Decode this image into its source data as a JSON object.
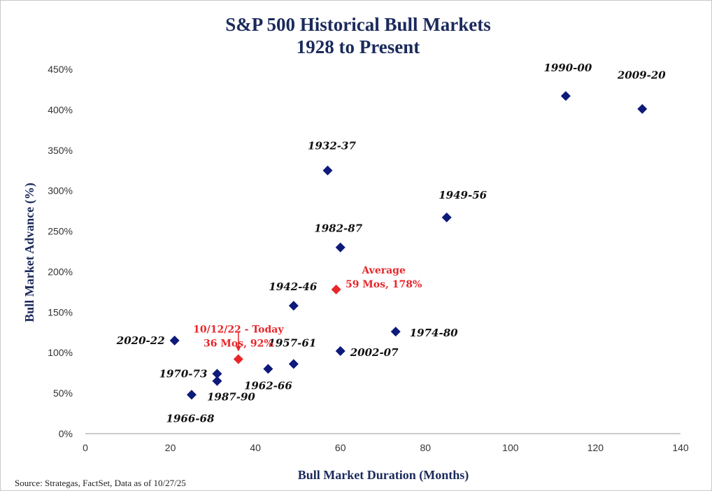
{
  "chart_data": {
    "type": "scatter",
    "title": "S&P 500 Historical Bull Markets",
    "subtitle": "1928 to Present",
    "xlabel": "Bull Market Duration (Months)",
    "ylabel": "Bull Market Advance (%)",
    "xlim": [
      0,
      140
    ],
    "ylim": [
      0,
      450
    ],
    "xticks": [
      0,
      20,
      40,
      60,
      80,
      100,
      120,
      140
    ],
    "yticks": [
      0,
      50,
      100,
      150,
      200,
      250,
      300,
      350,
      400,
      450
    ],
    "ytick_labels": [
      "0%",
      "50%",
      "100%",
      "150%",
      "200%",
      "250%",
      "300%",
      "350%",
      "400%",
      "450%"
    ],
    "grid": false,
    "colors": {
      "historical": "#0d1a7a",
      "highlight": "#e8262a",
      "title": "#1b2a5c"
    },
    "points": [
      {
        "label": "1990-00",
        "x": 113,
        "y": 417
      },
      {
        "label": "2009-20",
        "x": 131,
        "y": 401
      },
      {
        "label": "1932-37",
        "x": 57,
        "y": 325
      },
      {
        "label": "1949-56",
        "x": 85,
        "y": 267
      },
      {
        "label": "1982-87",
        "x": 60,
        "y": 230
      },
      {
        "label": "1942-46",
        "x": 49,
        "y": 158
      },
      {
        "label": "1974-80",
        "x": 73,
        "y": 126
      },
      {
        "label": "2020-22",
        "x": 21,
        "y": 115
      },
      {
        "label": "2002-07",
        "x": 60,
        "y": 102
      },
      {
        "label": "1957-61",
        "x": 49,
        "y": 86
      },
      {
        "label": "1962-66",
        "x": 43,
        "y": 80
      },
      {
        "label": "1970-73",
        "x": 31,
        "y": 74
      },
      {
        "label": "1987-90",
        "x": 31,
        "y": 65
      },
      {
        "label": "1966-68",
        "x": 25,
        "y": 48
      }
    ],
    "highlights": [
      {
        "line1": "Average",
        "line2": "59 Mos, 178%",
        "x": 59,
        "y": 178
      },
      {
        "line1": "10/12/22 - Today",
        "line2": "36 Mos, 92%",
        "x": 36,
        "y": 92
      }
    ],
    "source": "Source: Strategas, FactSet, Data as of 10/27/25"
  }
}
